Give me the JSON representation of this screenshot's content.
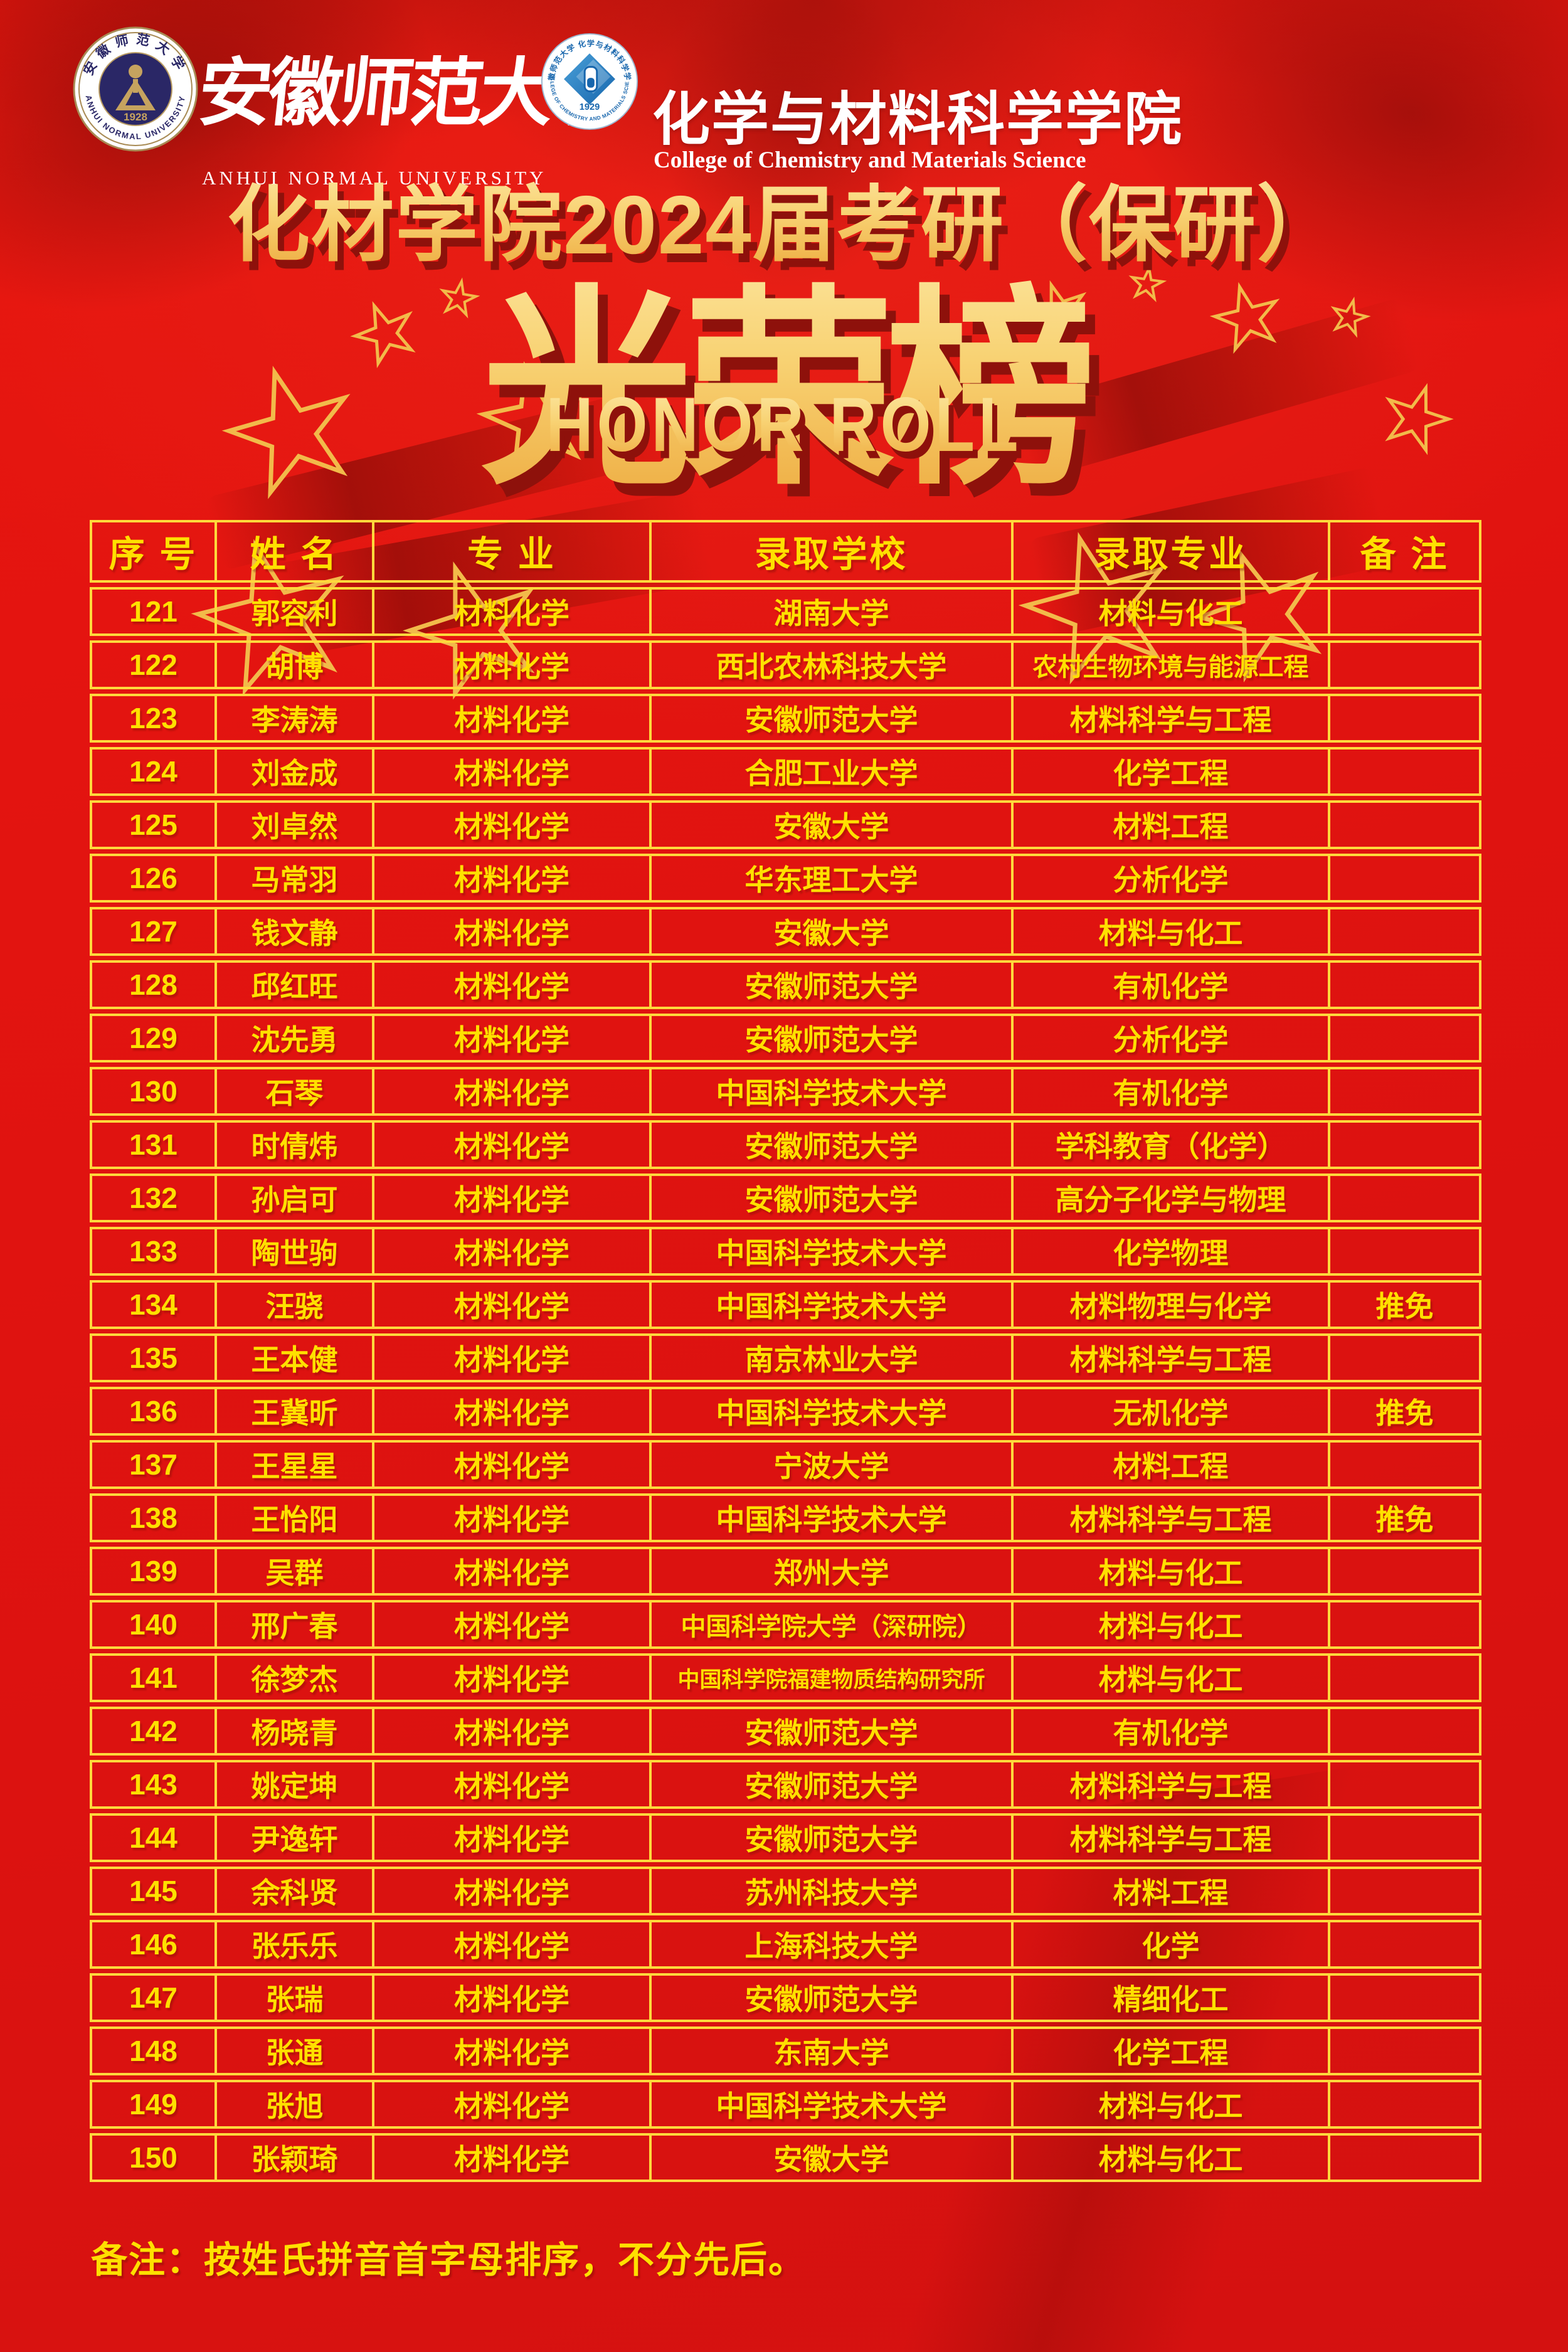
{
  "colors": {
    "background_red": "#e01310",
    "curtain_dark_red": "#8e110b",
    "border_gold": "#ffd93c",
    "table_text_yellow": "#ffe000",
    "title_gold_light": "#fdeaa8",
    "title_gold_dark": "#eda83c",
    "star_gold": "#f2ba4a",
    "seal_navy": "#2a2766",
    "seal_ring_gold": "#a88b55",
    "college_blue": "#1766ad",
    "college_blue_light": "#4aa0d8",
    "white": "#ffffff"
  },
  "icons": {
    "star": "★"
  },
  "header": {
    "university_seal": {
      "ring_zh": "安徽师范大学",
      "ring_en": "ANHUI NORMAL UNIVERSITY",
      "year": "1928"
    },
    "university_name": "安徽师范大学",
    "university_name_en": "ANHUI  NORMAL  UNIVERSITY",
    "college_seal": {
      "ring_zh": "安徽师范大学 化学与材料科学学院",
      "ring_en": "COLLEGE OF CHEMISTRY AND MATERIALS SCIENCE",
      "year": "1929"
    },
    "college_name": "化学与材料科学学院",
    "college_name_en": "College of Chemistry and Materials Science"
  },
  "title": {
    "line1": "化材学院2024届考研（保研）",
    "main": "光荣榜",
    "sub": "HONOR ROLL"
  },
  "table": {
    "columns": [
      "序 号",
      "姓 名",
      "专 业",
      "录取学校",
      "录取专业",
      "备 注"
    ],
    "column_keys": [
      "index",
      "name",
      "major",
      "school",
      "admitted-major",
      "remark"
    ],
    "rows": [
      [
        "121",
        "郭容利",
        "材料化学",
        "湖南大学",
        "材料与化工",
        ""
      ],
      [
        "122",
        "胡博",
        "材料化学",
        "西北农林科技大学",
        "农村生物环境与能源工程",
        ""
      ],
      [
        "123",
        "李涛涛",
        "材料化学",
        "安徽师范大学",
        "材料科学与工程",
        ""
      ],
      [
        "124",
        "刘金成",
        "材料化学",
        "合肥工业大学",
        "化学工程",
        ""
      ],
      [
        "125",
        "刘卓然",
        "材料化学",
        "安徽大学",
        "材料工程",
        ""
      ],
      [
        "126",
        "马常羽",
        "材料化学",
        "华东理工大学",
        "分析化学",
        ""
      ],
      [
        "127",
        "钱文静",
        "材料化学",
        "安徽大学",
        "材料与化工",
        ""
      ],
      [
        "128",
        "邱红旺",
        "材料化学",
        "安徽师范大学",
        "有机化学",
        ""
      ],
      [
        "129",
        "沈先勇",
        "材料化学",
        "安徽师范大学",
        "分析化学",
        ""
      ],
      [
        "130",
        "石琴",
        "材料化学",
        "中国科学技术大学",
        "有机化学",
        ""
      ],
      [
        "131",
        "时倩炜",
        "材料化学",
        "安徽师范大学",
        "学科教育（化学）",
        ""
      ],
      [
        "132",
        "孙启可",
        "材料化学",
        "安徽师范大学",
        "高分子化学与物理",
        ""
      ],
      [
        "133",
        "陶世驹",
        "材料化学",
        "中国科学技术大学",
        "化学物理",
        ""
      ],
      [
        "134",
        "汪骁",
        "材料化学",
        "中国科学技术大学",
        "材料物理与化学",
        "推免"
      ],
      [
        "135",
        "王本健",
        "材料化学",
        "南京林业大学",
        "材料科学与工程",
        ""
      ],
      [
        "136",
        "王冀昕",
        "材料化学",
        "中国科学技术大学",
        "无机化学",
        "推免"
      ],
      [
        "137",
        "王星星",
        "材料化学",
        "宁波大学",
        "材料工程",
        ""
      ],
      [
        "138",
        "王怡阳",
        "材料化学",
        "中国科学技术大学",
        "材料科学与工程",
        "推免"
      ],
      [
        "139",
        "吴群",
        "材料化学",
        "郑州大学",
        "材料与化工",
        ""
      ],
      [
        "140",
        "邢广春",
        "材料化学",
        "中国科学院大学（深研院）",
        "材料与化工",
        ""
      ],
      [
        "141",
        "徐梦杰",
        "材料化学",
        "中国科学院福建物质结构研究所",
        "材料与化工",
        ""
      ],
      [
        "142",
        "杨晓青",
        "材料化学",
        "安徽师范大学",
        "有机化学",
        ""
      ],
      [
        "143",
        "姚定坤",
        "材料化学",
        "安徽师范大学",
        "材料科学与工程",
        ""
      ],
      [
        "144",
        "尹逸轩",
        "材料化学",
        "安徽师范大学",
        "材料科学与工程",
        ""
      ],
      [
        "145",
        "余科贤",
        "材料化学",
        "苏州科技大学",
        "材料工程",
        ""
      ],
      [
        "146",
        "张乐乐",
        "材料化学",
        "上海科技大学",
        "化学",
        ""
      ],
      [
        "147",
        "张瑞",
        "材料化学",
        "安徽师范大学",
        "精细化工",
        ""
      ],
      [
        "148",
        "张通",
        "材料化学",
        "东南大学",
        "化学工程",
        ""
      ],
      [
        "149",
        "张旭",
        "材料化学",
        "中国科学技术大学",
        "材料与化工",
        ""
      ],
      [
        "150",
        "张颖琦",
        "材料化学",
        "安徽大学",
        "材料与化工",
        ""
      ]
    ]
  },
  "footer": {
    "note": "备注：按姓氏拼音首字母排序，不分先后。"
  }
}
